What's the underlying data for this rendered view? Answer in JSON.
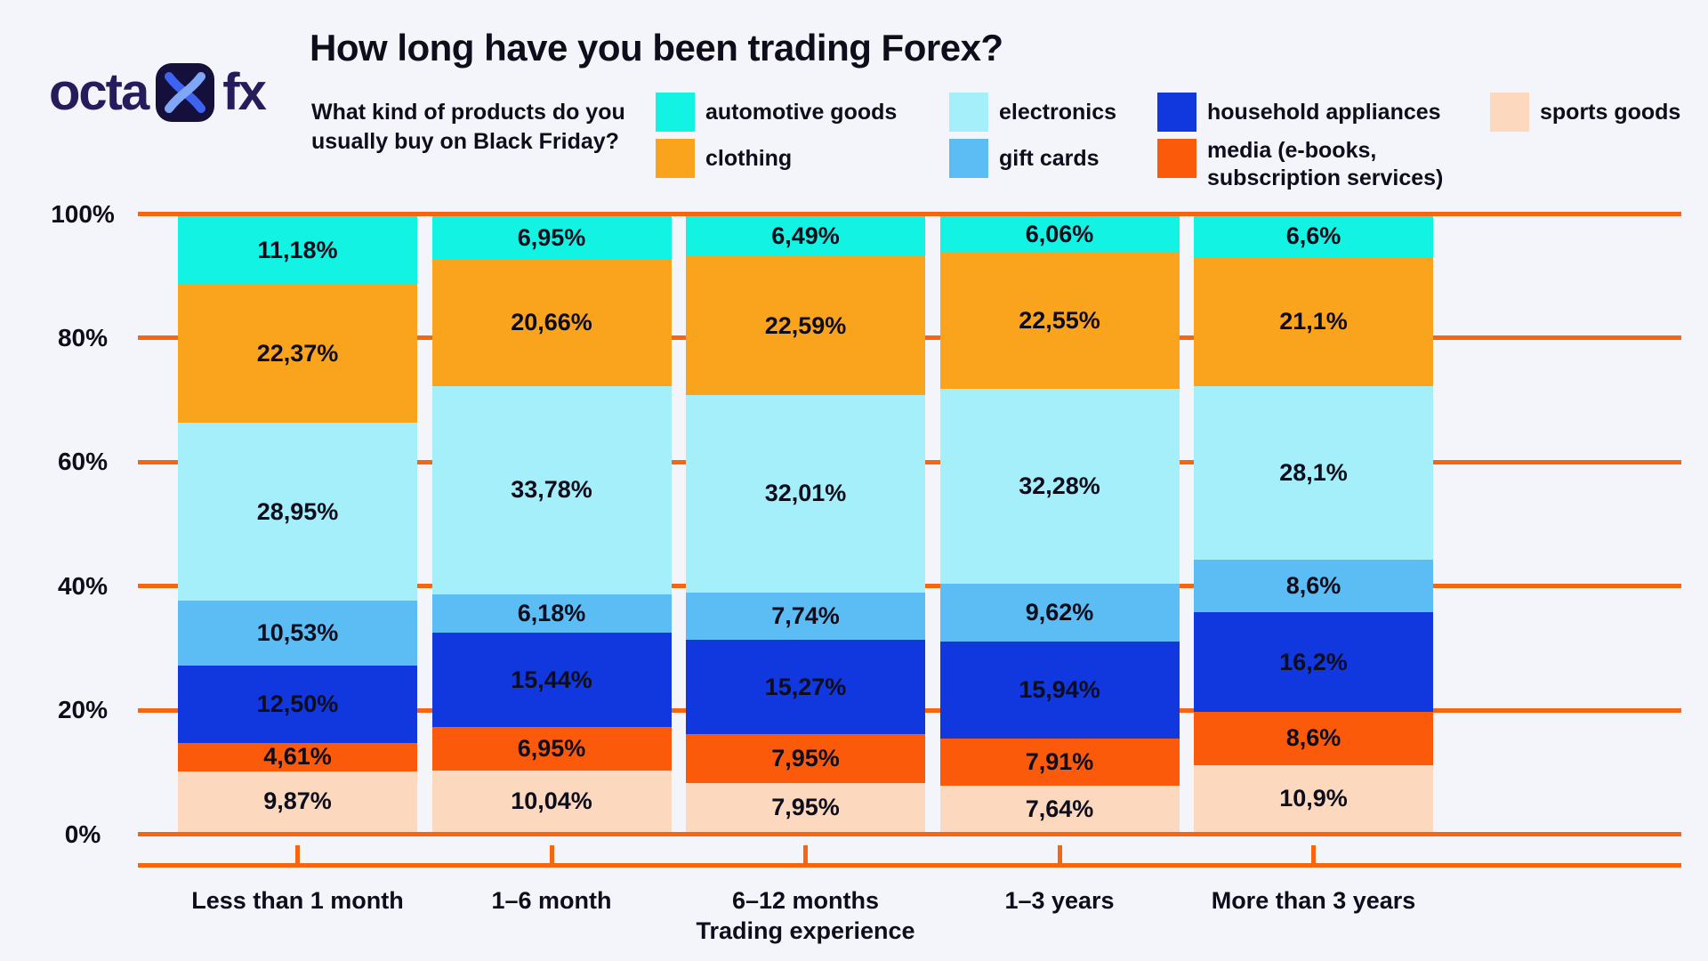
{
  "brand": {
    "logo_left": "octa",
    "logo_right": "fx"
  },
  "title": "How long have you been trading Forex?",
  "subtitle": "What kind of products do you usually buy on Black Friday?",
  "legend": [
    {
      "label": "automotive goods",
      "color": "#12F3E4"
    },
    {
      "label": "clothing",
      "color": "#FAA31C"
    },
    {
      "label": "electronics",
      "color": "#A5EFFB"
    },
    {
      "label": "gift cards",
      "color": "#5BBDF4"
    },
    {
      "label": "household appliances",
      "color": "#1138DF"
    },
    {
      "label": "media (e-books, subscription services)",
      "color": "#FA5A0A"
    },
    {
      "label": "sports goods",
      "color": "#FCD9BE"
    }
  ],
  "chart_data": {
    "type": "bar",
    "stacked": true,
    "title": "How long have you been trading Forex?",
    "xlabel": "Trading experience",
    "ylabel": "",
    "ylim": [
      0,
      100
    ],
    "grid": true,
    "legend_position": "top",
    "ytick_labels": [
      "100%",
      "80%",
      "60%",
      "40%",
      "20%",
      "0%"
    ],
    "categories": [
      "Less than 1 month",
      "1–6 month",
      "6–12 months",
      "1–3 years",
      "More than 3 years"
    ],
    "series": [
      {
        "name": "automotive goods",
        "color": "#12F3E4",
        "values": [
          11.18,
          6.95,
          6.49,
          6.06,
          6.6
        ],
        "labels": [
          "11,18%",
          "6,95%",
          "6,49%",
          "6,06%",
          "6,6%"
        ]
      },
      {
        "name": "clothing",
        "color": "#FAA31C",
        "values": [
          22.37,
          20.66,
          22.59,
          22.55,
          21.1
        ],
        "labels": [
          "22,37%",
          "20,66%",
          "22,59%",
          "22,55%",
          "21,1%"
        ]
      },
      {
        "name": "electronics",
        "color": "#A5EFFB",
        "values": [
          28.95,
          33.78,
          32.01,
          32.28,
          28.1
        ],
        "labels": [
          "28,95%",
          "33,78%",
          "32,01%",
          "32,28%",
          "28,1%"
        ]
      },
      {
        "name": "gift cards",
        "color": "#5BBDF4",
        "values": [
          10.53,
          6.18,
          7.74,
          9.62,
          8.6
        ],
        "labels": [
          "10,53%",
          "6,18%",
          "7,74%",
          "9,62%",
          "8,6%"
        ]
      },
      {
        "name": "household appliances",
        "color": "#1138DF",
        "values": [
          12.5,
          15.44,
          15.27,
          15.94,
          16.2
        ],
        "labels": [
          "12,50%",
          "15,44%",
          "15,27%",
          "15,94%",
          "16,2%"
        ]
      },
      {
        "name": "media (e-books, subscription services)",
        "color": "#FA5A0A",
        "values": [
          4.61,
          6.95,
          7.95,
          7.91,
          8.6
        ],
        "labels": [
          "4,61%",
          "6,95%",
          "7,95%",
          "7,91%",
          "8,6%"
        ]
      },
      {
        "name": "sports goods",
        "color": "#FCD9BE",
        "values": [
          9.87,
          10.04,
          7.95,
          7.64,
          10.9
        ],
        "labels": [
          "9,87%",
          "10,04%",
          "7,95%",
          "7,64%",
          "10,9%"
        ]
      }
    ]
  },
  "colors": {
    "background": "#F4F5FA",
    "grid": "#F8650F",
    "text": "#0D0D1C",
    "logo": "#251D5B"
  }
}
